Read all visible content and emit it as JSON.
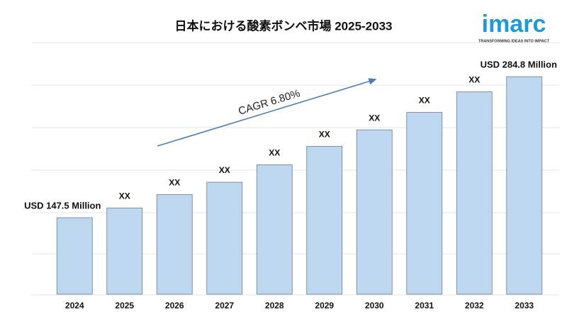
{
  "chart_data": {
    "type": "bar",
    "title": "日本における酸素ボンベ市場 2025-2033",
    "categories": [
      "2024",
      "2025",
      "2026",
      "2027",
      "2028",
      "2029",
      "2030",
      "2031",
      "2032",
      "2033"
    ],
    "values": [
      147.5,
      157,
      170,
      182,
      199,
      217,
      233,
      250,
      270,
      284.8
    ],
    "value_labels": [
      "USD 147.5 Million",
      "XX",
      "XX",
      "XX",
      "XX",
      "XX",
      "XX",
      "XX",
      "XX",
      "USD 284.8 Million"
    ],
    "color": "#bdd7ee",
    "ylim": [
      73,
      318
    ],
    "annotation": "CAGR 6.80%",
    "logo": {
      "name": "imarc",
      "tagline": "TRANSFORMING IDEAS INTO IMPACT"
    }
  }
}
